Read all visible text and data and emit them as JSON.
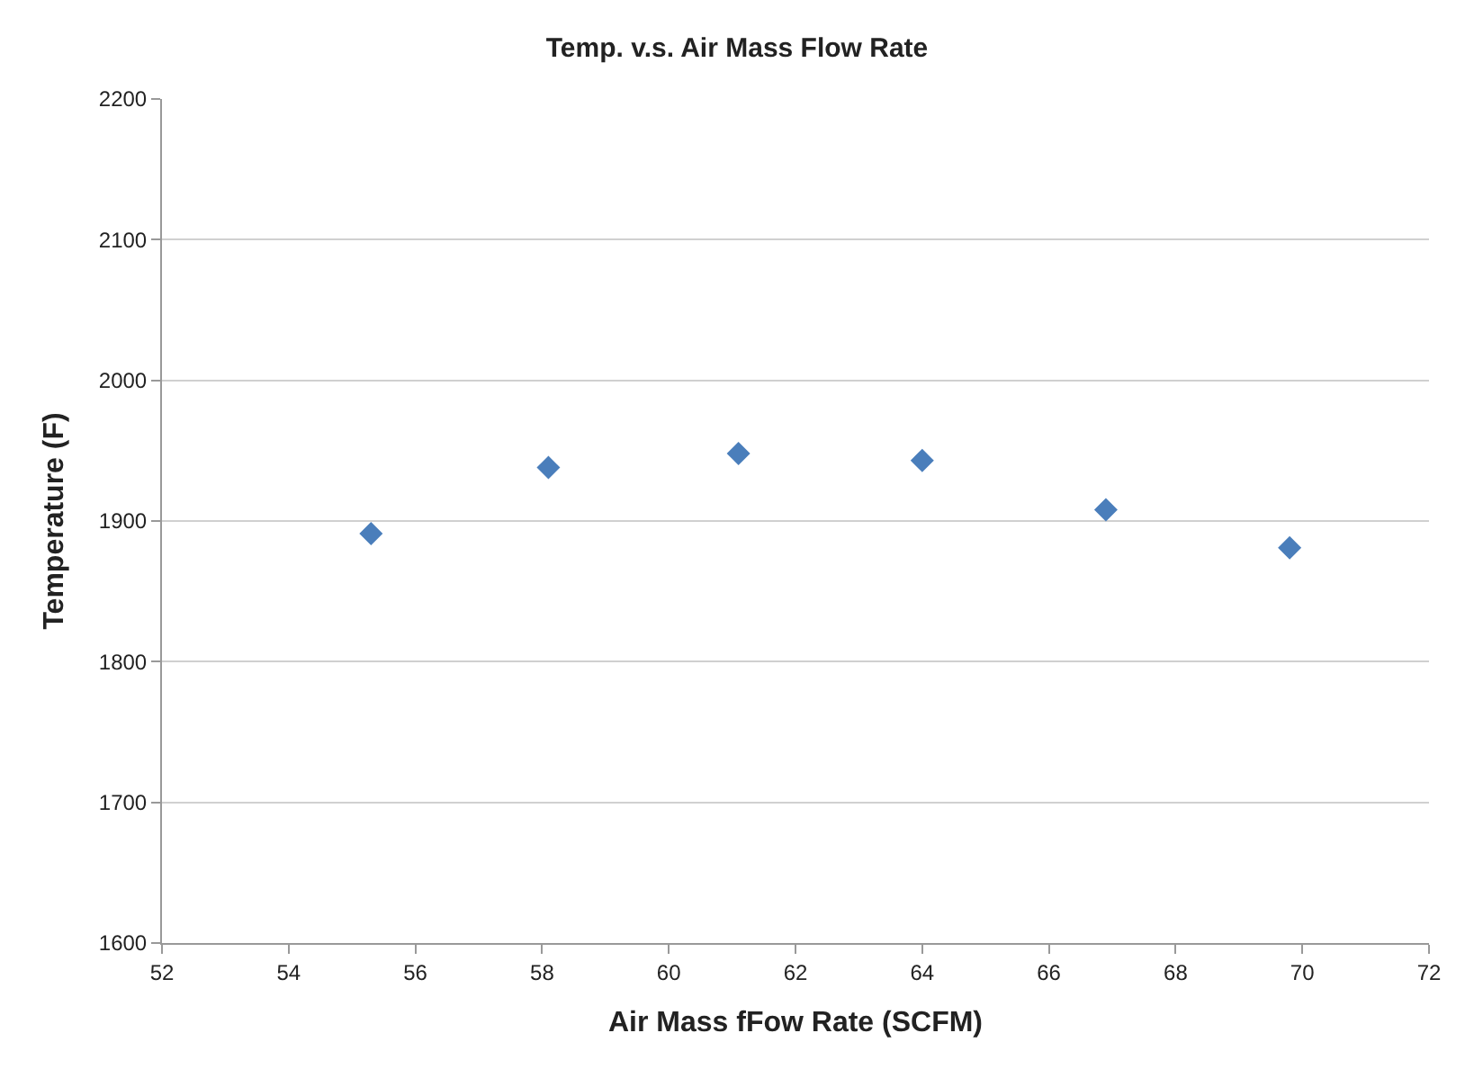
{
  "chart_data": {
    "type": "scatter",
    "title": "Temp. v.s. Air Mass Flow Rate",
    "xlabel": "Air Mass fFow Rate (SCFM)",
    "ylabel": "Temperature (F)",
    "x": [
      55.3,
      58.1,
      61.1,
      64.0,
      66.9,
      69.8
    ],
    "values": [
      1891,
      1938,
      1948,
      1943,
      1908,
      1881
    ],
    "color": "#4a7ebb",
    "marker": "diamond",
    "xlim": [
      52,
      72
    ],
    "xticks": [
      52,
      54,
      56,
      58,
      60,
      62,
      64,
      66,
      68,
      70,
      72
    ],
    "ylim": [
      1600,
      2200
    ],
    "yticks": [
      1600,
      1700,
      1800,
      1900,
      2000,
      2100,
      2200
    ],
    "grid": "y",
    "legend": false
  }
}
